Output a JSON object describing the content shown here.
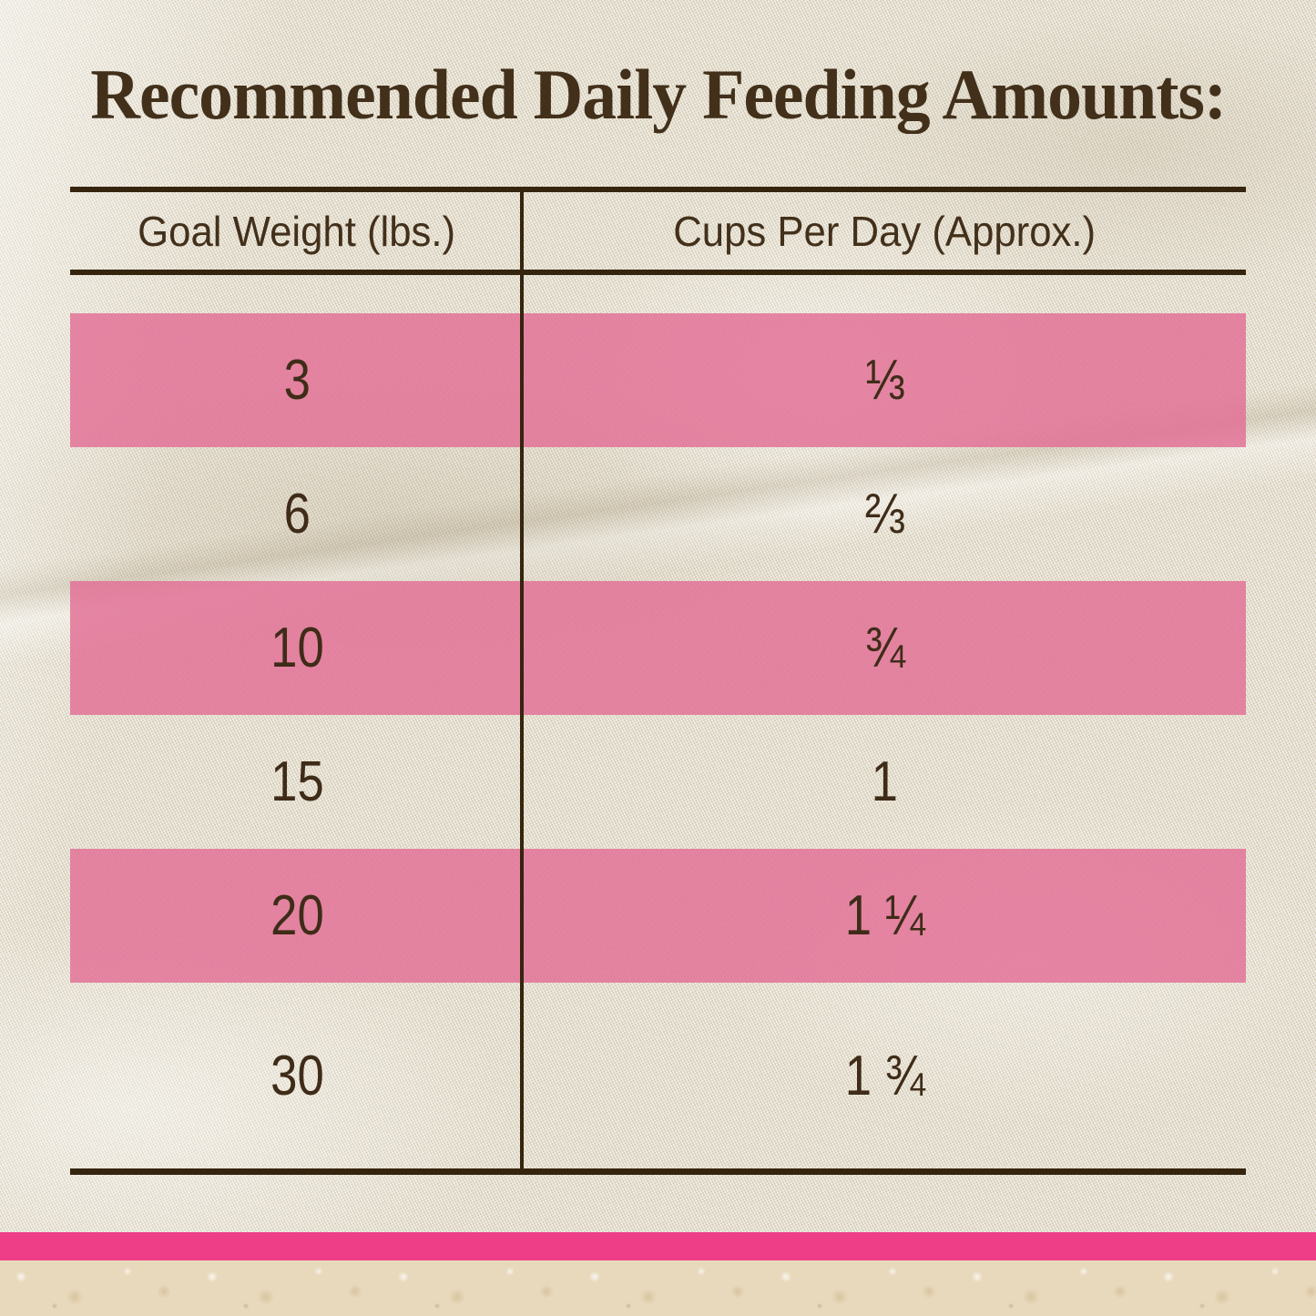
{
  "title": "Recommended Daily Feeding Amounts:",
  "table": {
    "headers": [
      "Goal Weight (lbs.)",
      "Cups Per Day (Approx.)"
    ],
    "rows": [
      {
        "weight": "3",
        "cups": "⅓",
        "highlighted": true
      },
      {
        "weight": "6",
        "cups": "⅔",
        "highlighted": false
      },
      {
        "weight": "10",
        "cups": "¾",
        "highlighted": true
      },
      {
        "weight": "15",
        "cups": "1",
        "highlighted": false
      },
      {
        "weight": "20",
        "cups": "1 ¼",
        "highlighted": true
      },
      {
        "weight": "30",
        "cups": "1 ¾",
        "highlighted": false
      }
    ]
  },
  "chart_data": {
    "type": "table",
    "title": "Recommended Daily Feeding Amounts:",
    "columns": [
      "Goal Weight (lbs.)",
      "Cups Per Day (Approx.)"
    ],
    "rows": [
      [
        "3",
        "1/3"
      ],
      [
        "6",
        "2/3"
      ],
      [
        "10",
        "3/4"
      ],
      [
        "15",
        "1"
      ],
      [
        "20",
        "1 1/4"
      ],
      [
        "30",
        "1 3/4"
      ]
    ],
    "cups_numeric": [
      0.33,
      0.67,
      0.75,
      1,
      1.25,
      1.75
    ],
    "highlighted_row_indices": [
      0,
      2,
      4
    ]
  },
  "colors": {
    "highlight_pink": "#E26C94",
    "accent_stripe_pink": "#EE3E88",
    "text_brown": "#42301B",
    "rule_brown": "#35250F",
    "fabric_cream": "#EAE3D1",
    "marble_beige": "#E8D9BC"
  }
}
